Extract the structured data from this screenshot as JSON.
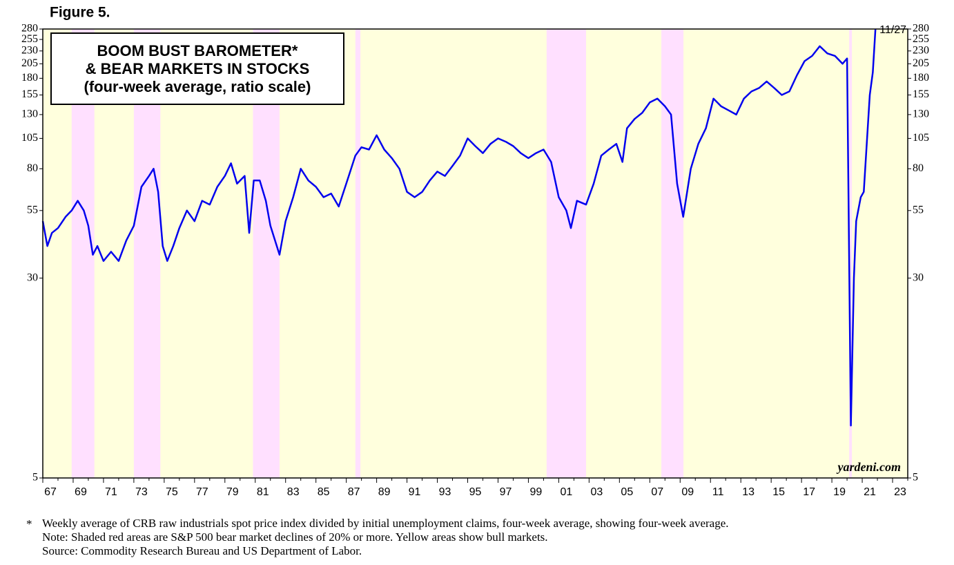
{
  "chart_data": {
    "type": "line",
    "figure_label": "Figure 5.",
    "title_lines": [
      "BOOM BUST BAROMETER*",
      "& BEAR MARKETS IN STOCKS",
      "(four-week average, ratio scale)"
    ],
    "annotation": "11/27",
    "source_mark": "yardeni.com",
    "footnote_marker": "*",
    "notes": [
      "Weekly average of CRB raw industrials spot price index divided by initial unemployment claims, four-week average, showing four-week average.",
      "Note: Shaded red areas are S&P 500 bear market declines of 20% or more. Yellow areas show bull markets.",
      "Source: Commodity Research Bureau and US Department of Labor."
    ],
    "log_scale": true,
    "background_color": "#ffffdd",
    "bear_color": "#ffe0ff",
    "bear_markets": [
      [
        1968.9,
        1970.4
      ],
      [
        1973.0,
        1974.75
      ],
      [
        1980.85,
        1982.6
      ],
      [
        1987.6,
        1987.93
      ],
      [
        2000.2,
        2002.8
      ],
      [
        2007.76,
        2009.22
      ],
      [
        2020.14,
        2020.32
      ]
    ],
    "xlim": [
      1967,
      2024
    ],
    "xticks": [
      {
        "value": 1967,
        "label": "67"
      },
      {
        "value": 1969,
        "label": "69"
      },
      {
        "value": 1971,
        "label": "71"
      },
      {
        "value": 1973,
        "label": "73"
      },
      {
        "value": 1975,
        "label": "75"
      },
      {
        "value": 1977,
        "label": "77"
      },
      {
        "value": 1979,
        "label": "79"
      },
      {
        "value": 1981,
        "label": "81"
      },
      {
        "value": 1983,
        "label": "83"
      },
      {
        "value": 1985,
        "label": "85"
      },
      {
        "value": 1987,
        "label": "87"
      },
      {
        "value": 1989,
        "label": "89"
      },
      {
        "value": 1991,
        "label": "91"
      },
      {
        "value": 1993,
        "label": "93"
      },
      {
        "value": 1995,
        "label": "95"
      },
      {
        "value": 1997,
        "label": "97"
      },
      {
        "value": 1999,
        "label": "99"
      },
      {
        "value": 2001,
        "label": "01"
      },
      {
        "value": 2003,
        "label": "03"
      },
      {
        "value": 2005,
        "label": "05"
      },
      {
        "value": 2007,
        "label": "07"
      },
      {
        "value": 2009,
        "label": "09"
      },
      {
        "value": 2011,
        "label": "11"
      },
      {
        "value": 2013,
        "label": "13"
      },
      {
        "value": 2015,
        "label": "15"
      },
      {
        "value": 2017,
        "label": "17"
      },
      {
        "value": 2019,
        "label": "19"
      },
      {
        "value": 2021,
        "label": "21"
      },
      {
        "value": 2023,
        "label": "23"
      }
    ],
    "ylim": [
      5,
      280
    ],
    "yticks": [
      5,
      30,
      55,
      80,
      105,
      130,
      155,
      180,
      205,
      230,
      255,
      280
    ],
    "x": [
      1967.0,
      1967.3,
      1967.6,
      1968.0,
      1968.5,
      1968.9,
      1969.3,
      1969.7,
      1970.0,
      1970.3,
      1970.6,
      1971.0,
      1971.5,
      1972.0,
      1972.5,
      1973.0,
      1973.5,
      1974.0,
      1974.3,
      1974.6,
      1974.9,
      1975.2,
      1975.6,
      1976.0,
      1976.5,
      1977.0,
      1977.5,
      1978.0,
      1978.5,
      1979.0,
      1979.4,
      1979.8,
      1980.3,
      1980.6,
      1980.9,
      1981.3,
      1981.7,
      1982.0,
      1982.6,
      1983.0,
      1983.5,
      1984.0,
      1984.5,
      1985.0,
      1985.5,
      1986.0,
      1986.5,
      1987.0,
      1987.6,
      1988.0,
      1988.5,
      1989.0,
      1989.5,
      1990.0,
      1990.5,
      1991.0,
      1991.5,
      1992.0,
      1992.5,
      1993.0,
      1993.5,
      1994.0,
      1994.5,
      1995.0,
      1995.5,
      1996.0,
      1996.5,
      1997.0,
      1997.5,
      1998.0,
      1998.5,
      1999.0,
      1999.5,
      2000.0,
      2000.5,
      2001.0,
      2001.5,
      2001.8,
      2002.2,
      2002.8,
      2003.3,
      2003.8,
      2004.3,
      2004.8,
      2005.2,
      2005.5,
      2006.0,
      2006.5,
      2007.0,
      2007.5,
      2008.0,
      2008.4,
      2008.8,
      2009.2,
      2009.7,
      2010.2,
      2010.7,
      2011.2,
      2011.7,
      2012.2,
      2012.7,
      2013.2,
      2013.7,
      2014.2,
      2014.7,
      2015.2,
      2015.7,
      2016.2,
      2016.7,
      2017.2,
      2017.7,
      2018.2,
      2018.7,
      2019.2,
      2019.7,
      2020.0,
      2020.25,
      2020.45,
      2020.6,
      2020.9,
      2021.1,
      2021.3,
      2021.5,
      2021.7,
      2021.87
    ],
    "series": [
      {
        "name": "Boom Bust Barometer",
        "color": "#0000ee",
        "values": [
          50,
          40,
          45,
          47,
          52,
          55,
          60,
          55,
          48,
          37,
          40,
          35,
          38,
          35,
          42,
          48,
          68,
          75,
          80,
          65,
          40,
          35,
          40,
          47,
          55,
          50,
          60,
          58,
          68,
          75,
          84,
          70,
          75,
          45,
          72,
          72,
          60,
          48,
          37,
          50,
          62,
          80,
          72,
          68,
          62,
          64,
          57,
          70,
          90,
          97,
          95,
          108,
          95,
          88,
          80,
          65,
          62,
          65,
          72,
          78,
          75,
          82,
          90,
          105,
          98,
          92,
          100,
          105,
          102,
          98,
          92,
          88,
          92,
          95,
          85,
          62,
          55,
          47,
          60,
          58,
          70,
          90,
          95,
          100,
          85,
          115,
          125,
          132,
          145,
          150,
          140,
          130,
          70,
          52,
          80,
          100,
          115,
          150,
          140,
          135,
          130,
          150,
          160,
          165,
          175,
          165,
          155,
          160,
          185,
          210,
          220,
          240,
          225,
          220,
          205,
          215,
          8,
          30,
          50,
          62,
          65,
          100,
          155,
          190,
          280
        ]
      }
    ]
  }
}
